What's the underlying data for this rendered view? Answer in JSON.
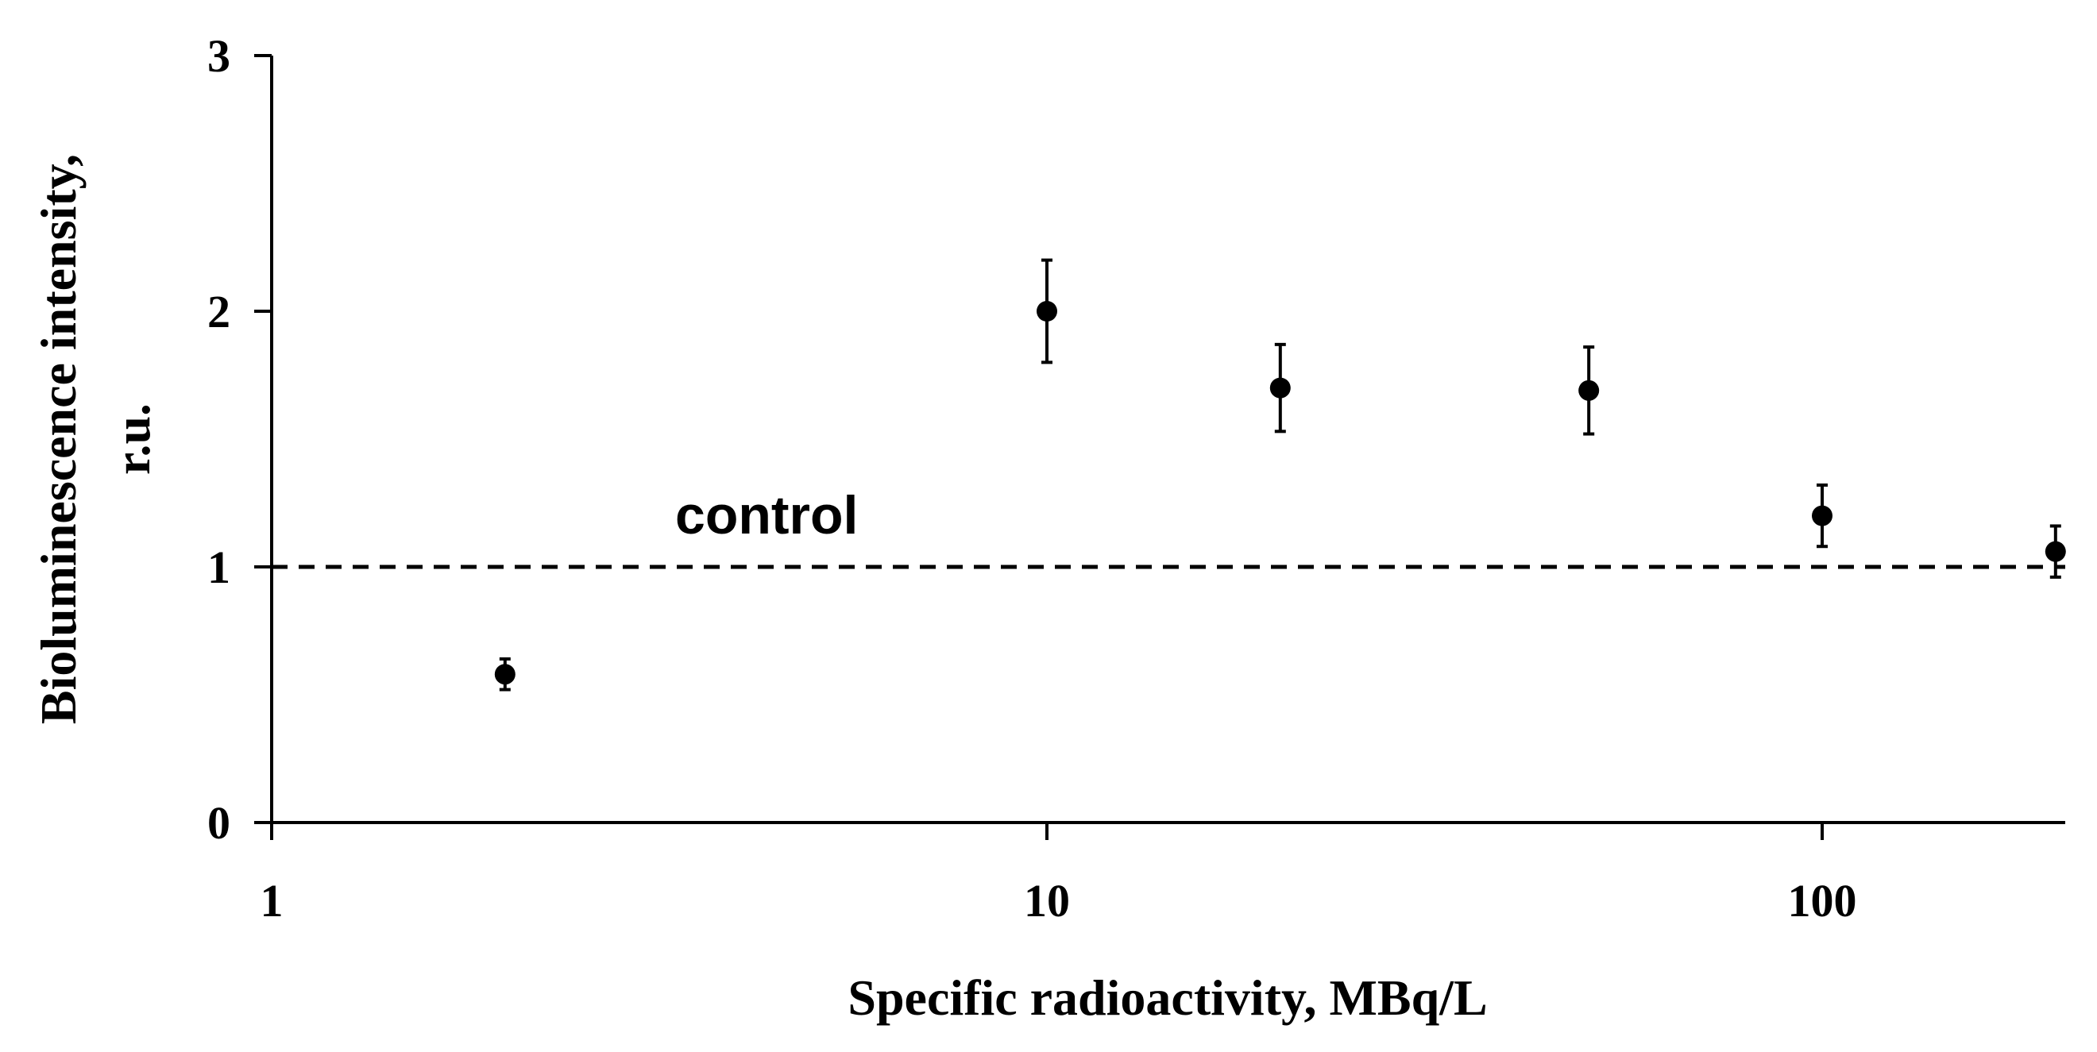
{
  "chart_data": {
    "type": "scatter",
    "xlabel": "Specific radioactivity, MBq/L",
    "ylabel_lines": [
      "Bioluminescence intensity,",
      "r.u."
    ],
    "x_scale": "log",
    "xlim": [
      1,
      200
    ],
    "ylim": [
      0,
      3
    ],
    "x_ticks": [
      1,
      10,
      100
    ],
    "x_tick_labels": [
      "1",
      "10",
      "100"
    ],
    "y_ticks": [
      0,
      1,
      2,
      3
    ],
    "y_tick_labels": [
      "0",
      "1",
      "2",
      "3"
    ],
    "grid": false,
    "legend": "none",
    "control_line": {
      "y": 1,
      "label": "control"
    },
    "points": [
      {
        "x": 2,
        "y": 0.58,
        "err": 0.06
      },
      {
        "x": 10,
        "y": 2.0,
        "err": 0.2
      },
      {
        "x": 20,
        "y": 1.7,
        "err": 0.17
      },
      {
        "x": 50,
        "y": 1.69,
        "err": 0.17
      },
      {
        "x": 100,
        "y": 1.2,
        "err": 0.12
      },
      {
        "x": 200,
        "y": 1.06,
        "err": 0.1
      }
    ]
  }
}
